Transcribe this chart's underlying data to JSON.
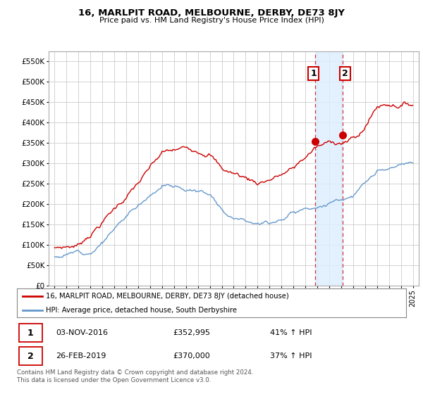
{
  "title": "16, MARLPIT ROAD, MELBOURNE, DERBY, DE73 8JY",
  "subtitle": "Price paid vs. HM Land Registry's House Price Index (HPI)",
  "sale1_date": "03-NOV-2016",
  "sale1_price": 352995,
  "sale1_price_str": "£352,995",
  "sale1_hpi": "41% ↑ HPI",
  "sale2_date": "26-FEB-2019",
  "sale2_price": 370000,
  "sale2_price_str": "£370,000",
  "sale2_hpi": "37% ↑ HPI",
  "legend_label1": "16, MARLPIT ROAD, MELBOURNE, DERBY, DE73 8JY (detached house)",
  "legend_label2": "HPI: Average price, detached house, South Derbyshire",
  "footer": "Contains HM Land Registry data © Crown copyright and database right 2024.\nThis data is licensed under the Open Government Licence v3.0.",
  "sale1_marker_x": 2016.83,
  "sale2_marker_x": 2019.15,
  "red_color": "#cc0000",
  "blue_color": "#6699cc",
  "shade_color": "#ddeeff",
  "background_color": "#ffffff",
  "grid_color": "#cccccc",
  "ylim": [
    0,
    575000
  ],
  "yticks": [
    0,
    50000,
    100000,
    150000,
    200000,
    250000,
    300000,
    350000,
    400000,
    450000,
    500000,
    550000
  ],
  "ylabels": [
    "£0",
    "£50K",
    "£100K",
    "£150K",
    "£200K",
    "£250K",
    "£300K",
    "£350K",
    "£400K",
    "£450K",
    "£500K",
    "£550K"
  ],
  "xlim_start": 1994.5,
  "xlim_end": 2025.5,
  "xticks": [
    1995,
    1996,
    1997,
    1998,
    1999,
    2000,
    2001,
    2002,
    2003,
    2004,
    2005,
    2006,
    2007,
    2008,
    2009,
    2010,
    2011,
    2012,
    2013,
    2014,
    2015,
    2016,
    2017,
    2018,
    2019,
    2020,
    2021,
    2022,
    2023,
    2024,
    2025
  ]
}
